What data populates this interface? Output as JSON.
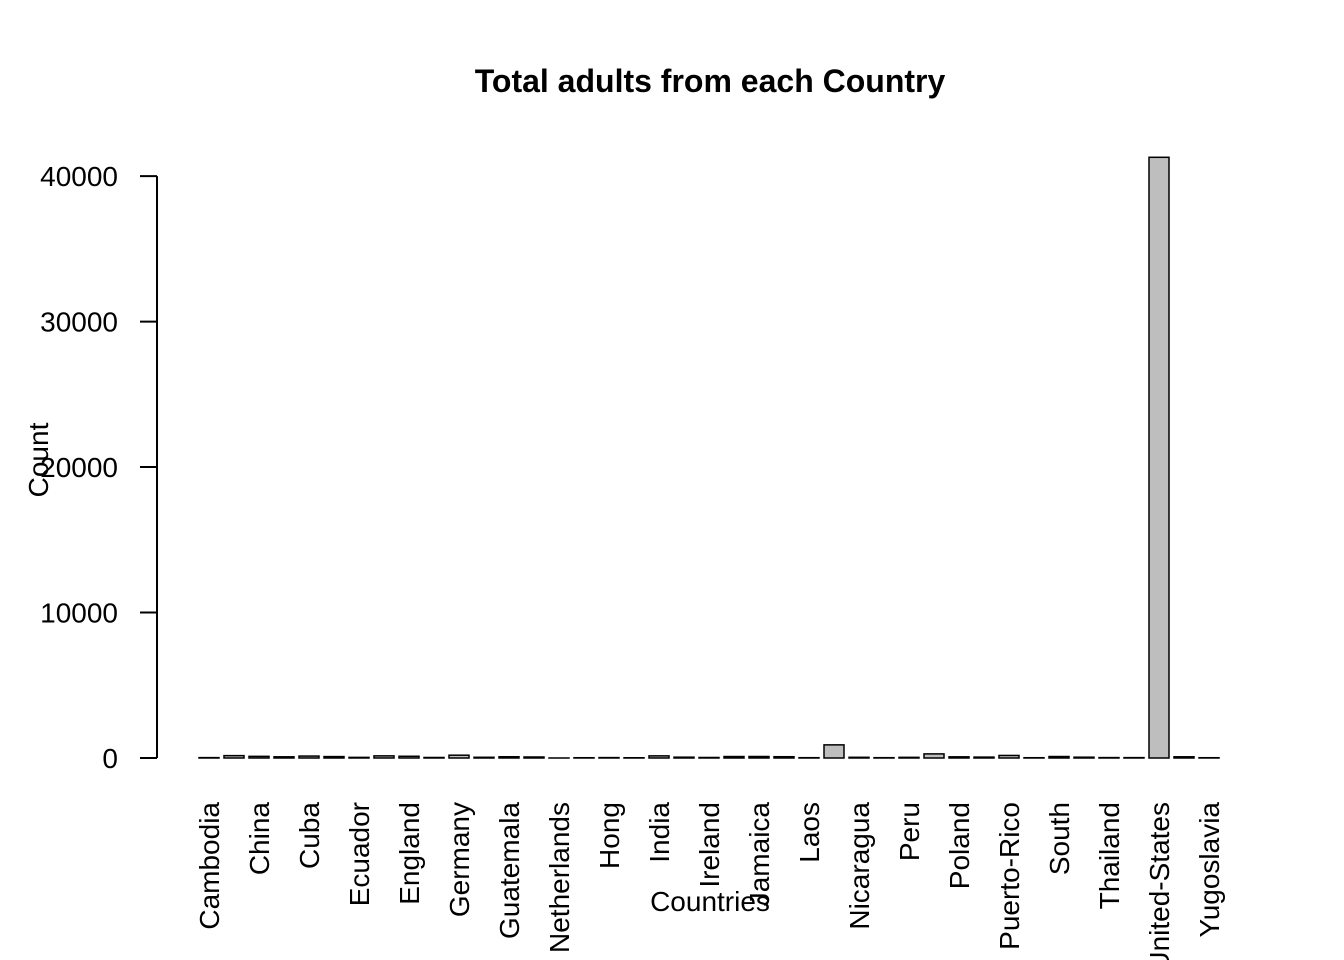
{
  "chart_data": {
    "type": "bar",
    "title": "Total adults from each Country",
    "x_label": "Countries",
    "y_label": "Count",
    "categories": [
      "Cambodia",
      null,
      "China",
      null,
      "Cuba",
      null,
      "Ecuador",
      null,
      "England",
      null,
      "Germany",
      null,
      "Guatemala",
      null,
      "Netherlands",
      null,
      "Hong",
      null,
      "India",
      null,
      "Ireland",
      null,
      "Jamaica",
      null,
      "Laos",
      null,
      "Nicaragua",
      null,
      "Peru",
      null,
      "Poland",
      null,
      "Puerto-Rico",
      null,
      "South",
      null,
      "Thailand",
      null,
      "United-States",
      null,
      "Yugoslavia"
    ],
    "values": [
      26,
      163,
      113,
      82,
      133,
      97,
      43,
      147,
      119,
      36,
      193,
      49,
      86,
      69,
      1,
      19,
      28,
      18,
      147,
      56,
      36,
      100,
      103,
      89,
      21,
      903,
      48,
      22,
      45,
      283,
      81,
      62,
      175,
      20,
      101,
      55,
      29,
      26,
      41292,
      83,
      20
    ],
    "color": "#bebebe",
    "ylim": [
      0,
      42000
    ],
    "yticks": [
      0,
      10000,
      20000,
      30000,
      40000
    ],
    "grid": false
  }
}
